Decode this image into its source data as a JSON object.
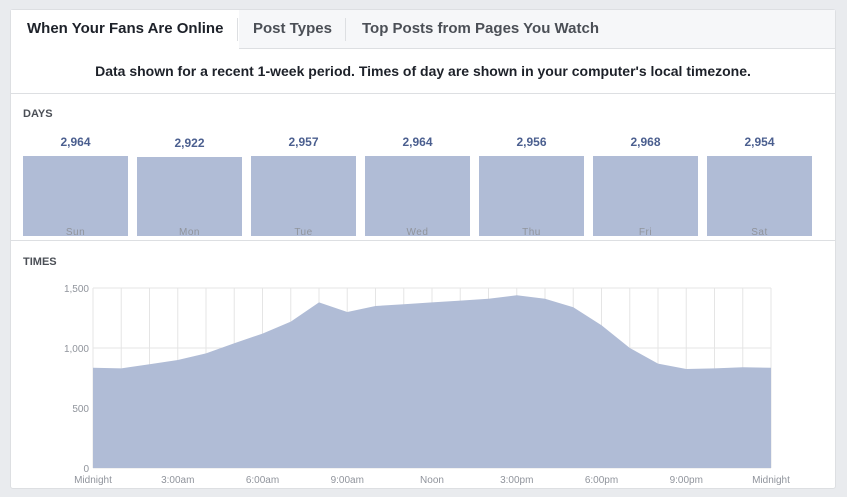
{
  "tabs": [
    {
      "label": "When Your Fans Are Online",
      "active": true
    },
    {
      "label": "Post Types",
      "active": false
    },
    {
      "label": "Top Posts from Pages You Watch",
      "active": false
    }
  ],
  "notice": "Data shown for a recent 1-week period. Times of day are shown in your computer's local timezone.",
  "days_section": {
    "title": "DAYS",
    "items": [
      {
        "day": "Sun",
        "value": 2964,
        "value_label": "2,964"
      },
      {
        "day": "Mon",
        "value": 2922,
        "value_label": "2,922"
      },
      {
        "day": "Tue",
        "value": 2957,
        "value_label": "2,957"
      },
      {
        "day": "Wed",
        "value": 2964,
        "value_label": "2,964"
      },
      {
        "day": "Thu",
        "value": 2956,
        "value_label": "2,956"
      },
      {
        "day": "Fri",
        "value": 2968,
        "value_label": "2,968"
      },
      {
        "day": "Sat",
        "value": 2954,
        "value_label": "2,954"
      }
    ]
  },
  "times_section": {
    "title": "TIMES"
  },
  "colors": {
    "fill": "#b0bcd6",
    "value_text": "#4b5f8f",
    "grid": "#e5e5e5",
    "axis_text": "#90949c"
  },
  "chart_data": {
    "type": "area",
    "title": "",
    "xlabel": "",
    "ylabel": "",
    "ylim": [
      0,
      1500
    ],
    "yticks": [
      0,
      500,
      1000,
      1500
    ],
    "ytick_labels": [
      "0",
      "500",
      "1,000",
      "1,500"
    ],
    "x_hours": [
      0,
      1,
      2,
      3,
      4,
      5,
      6,
      7,
      8,
      9,
      10,
      11,
      12,
      13,
      14,
      15,
      16,
      17,
      18,
      19,
      20,
      21,
      22,
      23,
      24
    ],
    "xtick_hours": [
      0,
      3,
      6,
      9,
      12,
      15,
      18,
      21,
      24
    ],
    "xtick_labels": [
      "Midnight",
      "3:00am",
      "6:00am",
      "9:00am",
      "Noon",
      "3:00pm",
      "6:00pm",
      "9:00pm",
      "Midnight"
    ],
    "grid": true,
    "series": [
      {
        "values": [
          835,
          830,
          865,
          900,
          955,
          1040,
          1120,
          1220,
          1380,
          1300,
          1350,
          1365,
          1380,
          1395,
          1410,
          1440,
          1410,
          1340,
          1190,
          1000,
          870,
          825,
          830,
          840,
          835
        ]
      }
    ]
  }
}
